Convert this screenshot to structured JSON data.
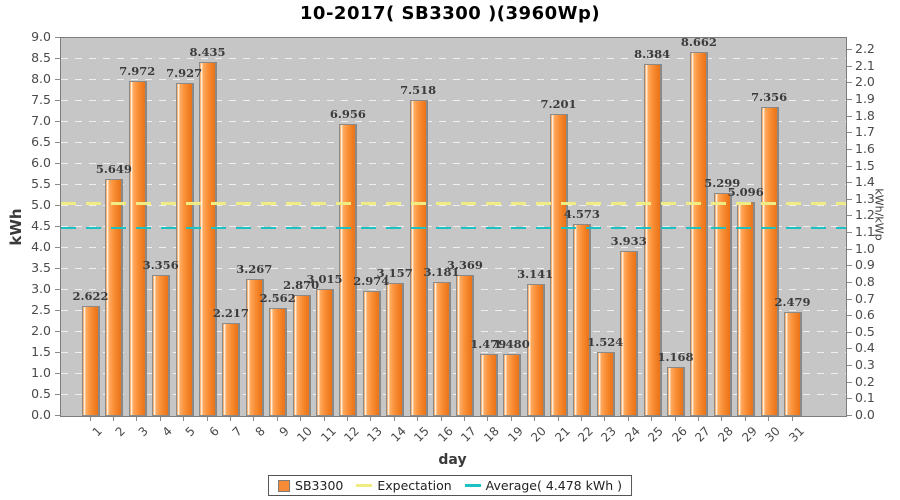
{
  "title": "10-2017( SB3300 )(3960Wp)",
  "chart_data": {
    "type": "bar",
    "title": "10-2017( SB3300 )(3960Wp)",
    "xlabel": "day",
    "ylabel_left": "kWh",
    "ylabel_right": "kWh/kWp",
    "grid": "horizontal-dashed-white",
    "plot_background": "#c6c6c6",
    "categories": [
      "1",
      "2",
      "3",
      "4",
      "5",
      "6",
      "7",
      "8",
      "9",
      "10",
      "11",
      "12",
      "13",
      "14",
      "15",
      "16",
      "17",
      "18",
      "19",
      "20",
      "21",
      "22",
      "23",
      "24",
      "25",
      "26",
      "27",
      "28",
      "29",
      "30",
      "31"
    ],
    "series": [
      {
        "name": "SB3300",
        "color": "#f78b37",
        "border_color": "#8a8a8a",
        "values": [
          2.622,
          5.649,
          7.972,
          3.356,
          7.927,
          8.435,
          2.217,
          3.267,
          2.562,
          2.87,
          3.015,
          6.956,
          2.974,
          3.157,
          7.518,
          3.181,
          3.369,
          1.479,
          1.48,
          3.141,
          7.201,
          4.573,
          1.524,
          3.933,
          8.384,
          1.168,
          8.662,
          5.299,
          5.096,
          7.356,
          2.479
        ]
      }
    ],
    "left_axis": {
      "min": 0.0,
      "max": 9.0,
      "step": 0.5,
      "ticks": [
        "0.0",
        "0.5",
        "1.0",
        "1.5",
        "2.0",
        "2.5",
        "3.0",
        "3.5",
        "4.0",
        "4.5",
        "5.0",
        "5.5",
        "6.0",
        "6.5",
        "7.0",
        "7.5",
        "8.0",
        "8.5",
        "9.0"
      ]
    },
    "right_axis": {
      "min": 0.0,
      "max": 2.2727,
      "step": 0.1,
      "unit_kwh_per_tick": 0.396,
      "ticks": [
        "0.0",
        "0.1",
        "0.2",
        "0.3",
        "0.4",
        "0.5",
        "0.6",
        "0.7",
        "0.8",
        "0.9",
        "1.0",
        "1.1",
        "1.2",
        "1.3",
        "1.4",
        "1.5",
        "1.6",
        "1.7",
        "1.8",
        "1.9",
        "2.0",
        "2.1",
        "2.2"
      ]
    },
    "reference_lines": [
      {
        "name": "Expectation",
        "value_kwh": 5.05,
        "color": "#f0ec84",
        "style": "dashed",
        "thickness": 3
      },
      {
        "name": "Average",
        "value_kwh": 4.478,
        "color": "#1ec1c1",
        "style": "dashed",
        "thickness": 2
      }
    ],
    "legend": {
      "position": "bottom",
      "entries": [
        {
          "label": "SB3300",
          "swatch": "square",
          "color": "#f78b37"
        },
        {
          "label": "Expectation",
          "swatch": "line",
          "color": "#f0ec84"
        },
        {
          "label": "Average( 4.478 kWh )",
          "swatch": "line",
          "color": "#1ec1c1"
        }
      ]
    }
  }
}
